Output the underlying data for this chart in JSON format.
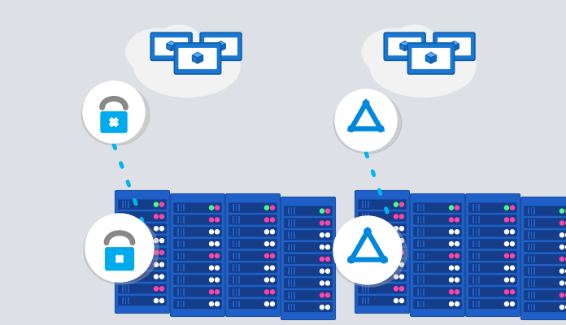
{
  "background_color": "#dde0e5",
  "dot_color": "#00b4f0",
  "server_dark": "#1a4fa0",
  "server_mid": "#1e60c8",
  "server_light": "#2979d8",
  "server_row_dark": "#163d8a",
  "monitor_blue": "#1878d2",
  "monitor_face": "#ffffff",
  "cube_blue": "#1878d2",
  "lock_gray": "#888888",
  "lock_blue": "#00aaee",
  "triangle_blue": "#0088dd",
  "circle_white": "#ffffff",
  "cloud_white": "#f2f2f2",
  "pink_light": "#ff44aa",
  "green_light": "#44ff88",
  "white_light": "#ffffff"
}
